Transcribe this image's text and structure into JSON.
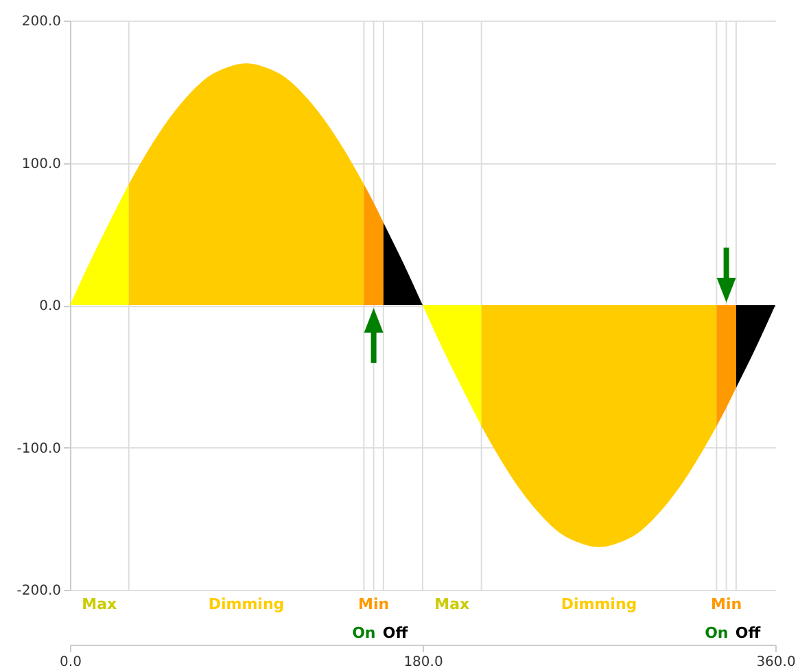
{
  "chart_data": {
    "type": "area",
    "xlim": [
      0,
      360
    ],
    "ylim": [
      -200,
      200
    ],
    "xticks": [
      {
        "value": 0,
        "label": "0.0"
      },
      {
        "value": 180,
        "label": "180.0"
      },
      {
        "value": 360,
        "label": "360.0"
      }
    ],
    "yticks": [
      {
        "value": -200,
        "label": "-200.0"
      },
      {
        "value": -100,
        "label": "-100.0"
      },
      {
        "value": 0,
        "label": "0.0"
      },
      {
        "value": 100,
        "label": "100.0"
      },
      {
        "value": 200,
        "label": "200.0"
      }
    ],
    "grid": "y",
    "series": [
      {
        "color": "#ffff00",
        "x": [
          0,
          10,
          20,
          30
        ],
        "values": [
          0,
          30,
          58,
          85
        ]
      },
      {
        "color": "#ffcc00",
        "x": [
          30,
          40,
          50,
          60,
          70,
          80,
          90,
          100,
          110,
          120,
          130,
          140,
          150
        ],
        "values": [
          85,
          109,
          130,
          147,
          160,
          167,
          170,
          167,
          160,
          147,
          130,
          109,
          85
        ]
      },
      {
        "color": "#ff9900",
        "x": [
          150,
          155,
          160
        ],
        "values": [
          85,
          72,
          58
        ]
      },
      {
        "color": "#000000",
        "x": [
          160,
          170,
          180
        ],
        "values": [
          58,
          30,
          0
        ]
      },
      {
        "color": "#ffff00",
        "x": [
          180,
          190,
          200,
          210
        ],
        "values": [
          0,
          -30,
          -58,
          -85
        ]
      },
      {
        "color": "#ffcc00",
        "x": [
          210,
          220,
          230,
          240,
          250,
          260,
          270,
          280,
          290,
          300,
          310,
          320,
          330
        ],
        "values": [
          -85,
          -109,
          -130,
          -147,
          -160,
          -167,
          -170,
          -167,
          -160,
          -147,
          -130,
          -109,
          -85
        ]
      },
      {
        "color": "#ff9900",
        "x": [
          330,
          335,
          340
        ],
        "values": [
          -85,
          -72,
          -58
        ]
      },
      {
        "color": "#000000",
        "x": [
          340,
          350,
          360
        ],
        "values": [
          -58,
          -30,
          0
        ]
      }
    ],
    "ref_lines": [
      {
        "axis": "x",
        "value": 30,
        "color": "#dddddd"
      },
      {
        "axis": "x",
        "value": 150,
        "color": "#dddddd"
      },
      {
        "axis": "x",
        "value": 155,
        "color": "#dddddd"
      },
      {
        "axis": "x",
        "value": 160,
        "color": "#dddddd"
      },
      {
        "axis": "x",
        "value": 180,
        "color": "#dddddd"
      },
      {
        "axis": "x",
        "value": 210,
        "color": "#dddddd"
      },
      {
        "axis": "x",
        "value": 330,
        "color": "#dddddd"
      },
      {
        "axis": "x",
        "value": 335,
        "color": "#dddddd"
      },
      {
        "axis": "x",
        "value": 340,
        "color": "#dddddd"
      }
    ],
    "annotations": [
      "Max",
      "Dimming",
      "Min",
      "Max",
      "Dimming",
      "Min",
      "On",
      "Off",
      "On",
      "Off"
    ]
  }
}
